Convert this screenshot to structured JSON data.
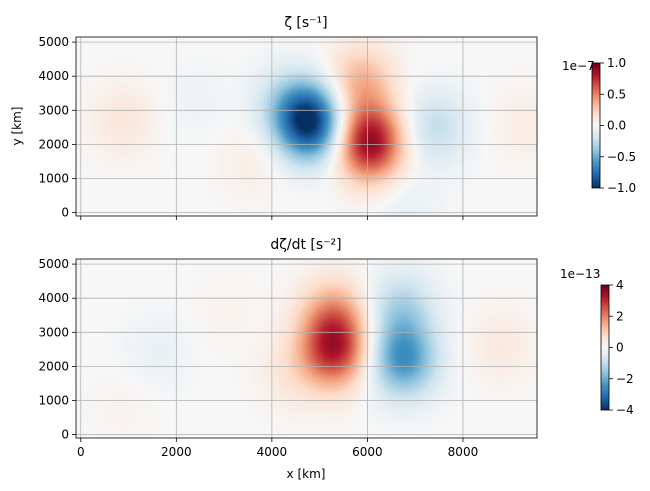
{
  "chart_data": [
    {
      "type": "heatmap",
      "title": "ζ [s⁻¹]",
      "xlabel": "",
      "ylabel": "y [km]",
      "xlim": [
        -100,
        9550
      ],
      "ylim": [
        -100,
        5150
      ],
      "xticks": [
        0,
        2000,
        4000,
        6000,
        8000
      ],
      "xtick_labels": [
        "",
        "",
        "",
        "",
        ""
      ],
      "yticks": [
        0,
        1000,
        2000,
        3000,
        4000,
        5000
      ],
      "ytick_labels": [
        "0",
        "1000",
        "2000",
        "3000",
        "4000",
        "5000"
      ],
      "grid": true,
      "colormap": "RdBu_r",
      "colorbar": {
        "range": [
          -1.0,
          1.0
        ],
        "ticks": [
          -1.0,
          -0.5,
          0.0,
          0.5,
          1.0
        ],
        "tick_labels": [
          "−1.0",
          "−0.5",
          "0.0",
          "0.5",
          "1.0"
        ],
        "offset_label": "1e−7"
      },
      "features": [
        {
          "x": 4800,
          "y": 2650,
          "value": -1.0
        },
        {
          "x": 6050,
          "y": 2050,
          "value": 0.9
        },
        {
          "x": 5850,
          "y": 3800,
          "value": 0.35
        },
        {
          "x": 4300,
          "y": 3200,
          "value": -0.2
        },
        {
          "x": 7400,
          "y": 2500,
          "value": -0.25
        },
        {
          "x": 3600,
          "y": 1500,
          "value": 0.08
        },
        {
          "x": 900,
          "y": 2700,
          "value": 0.12
        },
        {
          "x": 9300,
          "y": 2600,
          "value": 0.08
        },
        {
          "x": 2400,
          "y": 3300,
          "value": -0.05
        },
        {
          "x": 6800,
          "y": 200,
          "value": -0.08
        }
      ]
    },
    {
      "type": "heatmap",
      "title": "dζ/dt [s⁻²]",
      "xlabel": "x [km]",
      "ylabel": "",
      "xlim": [
        -100,
        9550
      ],
      "ylim": [
        -100,
        5150
      ],
      "xticks": [
        0,
        2000,
        4000,
        6000,
        8000
      ],
      "xtick_labels": [
        "0",
        "2000",
        "4000",
        "6000",
        "8000"
      ],
      "yticks": [
        0,
        1000,
        2000,
        3000,
        4000,
        5000
      ],
      "ytick_labels": [
        "0",
        "1000",
        "2000",
        "3000",
        "4000",
        "5000"
      ],
      "grid": true,
      "colormap": "RdBu_r",
      "colorbar": {
        "range": [
          -4,
          4
        ],
        "ticks": [
          -4,
          -2,
          0,
          2,
          4
        ],
        "tick_labels": [
          "−4",
          "−2",
          "0",
          "2",
          "4"
        ],
        "offset_label": "1e−13"
      },
      "features": [
        {
          "x": 5300,
          "y": 2450,
          "value": 2.8
        },
        {
          "x": 5300,
          "y": 3500,
          "value": 1.5
        },
        {
          "x": 6750,
          "y": 2200,
          "value": -2.4
        },
        {
          "x": 6700,
          "y": 3700,
          "value": -1.2
        },
        {
          "x": 4400,
          "y": 1800,
          "value": 0.4
        },
        {
          "x": 1600,
          "y": 2400,
          "value": -0.3
        },
        {
          "x": 900,
          "y": 800,
          "value": 0.15
        },
        {
          "x": 8800,
          "y": 2600,
          "value": 0.4
        },
        {
          "x": 3000,
          "y": 3500,
          "value": 0.15
        }
      ]
    }
  ]
}
